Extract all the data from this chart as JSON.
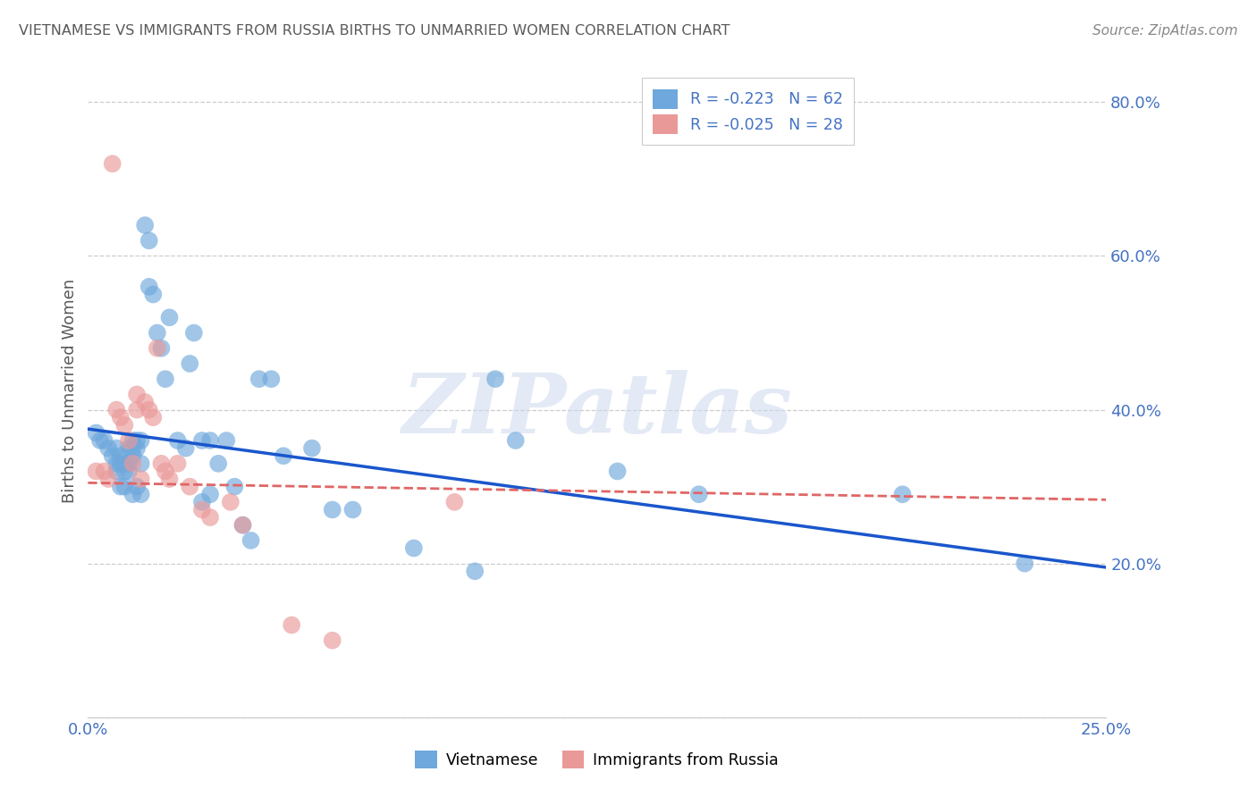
{
  "title": "VIETNAMESE VS IMMIGRANTS FROM RUSSIA BIRTHS TO UNMARRIED WOMEN CORRELATION CHART",
  "source": "Source: ZipAtlas.com",
  "ylabel": "Births to Unmarried Women",
  "xlim": [
    0.0,
    0.25
  ],
  "ylim": [
    0.0,
    0.85
  ],
  "xtick_vals": [
    0.0,
    0.05,
    0.1,
    0.15,
    0.2,
    0.25
  ],
  "xticklabels": [
    "0.0%",
    "",
    "",
    "",
    "",
    "25.0%"
  ],
  "ytick_vals": [
    0.0,
    0.2,
    0.4,
    0.6,
    0.8
  ],
  "yticklabels": [
    "",
    "20.0%",
    "40.0%",
    "60.0%",
    "80.0%"
  ],
  "blue_color": "#6fa8dc",
  "pink_color": "#ea9999",
  "line_blue": "#1a56cc",
  "line_pink": "#e06666",
  "title_color": "#595959",
  "axis_tick_color": "#4472c4",
  "grid_color": "#cccccc",
  "watermark": "ZIPatlas",
  "legend_blue_r": "R = -0.223",
  "legend_blue_n": "N = 62",
  "legend_pink_r": "R = -0.025",
  "legend_pink_n": "N = 28",
  "legend_blue_label": "Vietnamese",
  "legend_pink_label": "Immigrants from Russia",
  "blue_x": [
    0.002,
    0.003,
    0.004,
    0.005,
    0.006,
    0.007,
    0.007,
    0.007,
    0.008,
    0.008,
    0.008,
    0.009,
    0.009,
    0.009,
    0.01,
    0.01,
    0.01,
    0.011,
    0.011,
    0.011,
    0.011,
    0.012,
    0.012,
    0.012,
    0.013,
    0.013,
    0.013,
    0.014,
    0.015,
    0.015,
    0.016,
    0.017,
    0.018,
    0.019,
    0.02,
    0.022,
    0.024,
    0.025,
    0.026,
    0.028,
    0.028,
    0.03,
    0.03,
    0.032,
    0.034,
    0.036,
    0.038,
    0.04,
    0.042,
    0.045,
    0.048,
    0.055,
    0.06,
    0.065,
    0.08,
    0.095,
    0.1,
    0.105,
    0.13,
    0.15,
    0.2,
    0.23
  ],
  "blue_y": [
    0.37,
    0.36,
    0.36,
    0.35,
    0.34,
    0.35,
    0.33,
    0.32,
    0.34,
    0.33,
    0.3,
    0.33,
    0.32,
    0.3,
    0.35,
    0.33,
    0.32,
    0.36,
    0.35,
    0.34,
    0.29,
    0.36,
    0.35,
    0.3,
    0.36,
    0.33,
    0.29,
    0.64,
    0.62,
    0.56,
    0.55,
    0.5,
    0.48,
    0.44,
    0.52,
    0.36,
    0.35,
    0.46,
    0.5,
    0.36,
    0.28,
    0.36,
    0.29,
    0.33,
    0.36,
    0.3,
    0.25,
    0.23,
    0.44,
    0.44,
    0.34,
    0.35,
    0.27,
    0.27,
    0.22,
    0.19,
    0.44,
    0.36,
    0.32,
    0.29,
    0.29,
    0.2
  ],
  "pink_x": [
    0.002,
    0.004,
    0.005,
    0.006,
    0.007,
    0.008,
    0.009,
    0.01,
    0.011,
    0.012,
    0.012,
    0.013,
    0.014,
    0.015,
    0.016,
    0.017,
    0.018,
    0.019,
    0.02,
    0.022,
    0.025,
    0.028,
    0.03,
    0.035,
    0.038,
    0.05,
    0.06,
    0.09
  ],
  "pink_y": [
    0.32,
    0.32,
    0.31,
    0.72,
    0.4,
    0.39,
    0.38,
    0.36,
    0.33,
    0.42,
    0.4,
    0.31,
    0.41,
    0.4,
    0.39,
    0.48,
    0.33,
    0.32,
    0.31,
    0.33,
    0.3,
    0.27,
    0.26,
    0.28,
    0.25,
    0.12,
    0.1,
    0.28
  ],
  "blue_line_x0": 0.0,
  "blue_line_x1": 0.25,
  "blue_line_y0": 0.375,
  "blue_line_y1": 0.195,
  "pink_line_x0": 0.0,
  "pink_line_x1": 0.25,
  "pink_line_y0": 0.305,
  "pink_line_y1": 0.283
}
